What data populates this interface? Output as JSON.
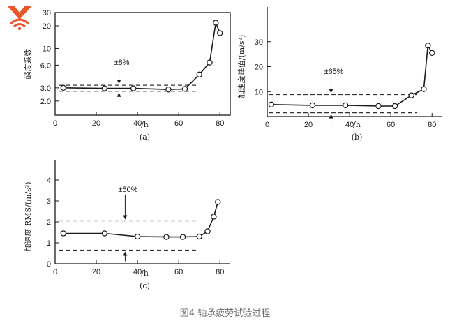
{
  "figure_caption": "图4 轴承疲劳试验过程",
  "logo": {
    "name": "wifi-logo-icon",
    "color": "#e8572a"
  },
  "chart_data": [
    {
      "type": "line",
      "panel": "(a)",
      "ylabel": "峭度系数",
      "xlabel": "/h",
      "y_scale": "log",
      "ylim": [
        1.3,
        30
      ],
      "xlim": [
        0,
        85
      ],
      "yticks": [
        2.0,
        3.0,
        6.0,
        10,
        20,
        30
      ],
      "yticklabels": [
        "2.0",
        "3.0",
        "6.0",
        "10",
        "20",
        "30"
      ],
      "xticks": [
        0,
        20,
        40,
        60,
        80
      ],
      "xticklabels": [
        "0",
        "20",
        "40",
        "60",
        "80"
      ],
      "series": [
        {
          "x": [
            4,
            24,
            38,
            55,
            63,
            70,
            75,
            78,
            80
          ],
          "y": [
            3.0,
            2.95,
            2.95,
            2.85,
            2.9,
            4.5,
            6.5,
            22,
            16
          ]
        }
      ],
      "hlines": [
        3.25,
        2.7
      ],
      "annotation": "±8%",
      "annotation_x": 31,
      "grid": false
    },
    {
      "type": "line",
      "panel": "(b)",
      "ylabel": "加速度峰值/(m/s²)",
      "xlabel": "/h",
      "ylim": [
        0,
        40
      ],
      "xlim": [
        0,
        85
      ],
      "yticks": [
        10,
        20,
        30
      ],
      "yticklabels": [
        "10",
        "20",
        "30"
      ],
      "xticks": [
        0,
        20,
        40,
        60,
        80
      ],
      "xticklabels": [
        "0",
        "20",
        "40",
        "60",
        "80"
      ],
      "series": [
        {
          "x": [
            2,
            22,
            38,
            54,
            62,
            70,
            76,
            78,
            80
          ],
          "y": [
            4.8,
            4.5,
            4.5,
            4.2,
            4.2,
            8.5,
            11,
            28.5,
            25.5
          ]
        }
      ],
      "hlines": [
        8.8,
        1.5
      ],
      "annotation": "±65%",
      "annotation_x": 31,
      "grid": false
    },
    {
      "type": "line",
      "panel": "(c)",
      "ylabel": "加速度 RMS/(m/s²)",
      "xlabel": "/h",
      "ylim": [
        0,
        4.5
      ],
      "xlim": [
        0,
        85
      ],
      "yticks": [
        0,
        1,
        2,
        3,
        4
      ],
      "yticklabels": [
        "0",
        "1",
        "2",
        "3",
        "4"
      ],
      "xticks": [
        0,
        20,
        40,
        60,
        80
      ],
      "xticklabels": [
        "0",
        "20",
        "40",
        "60",
        "80"
      ],
      "series": [
        {
          "x": [
            4,
            24,
            40,
            54,
            62,
            70,
            74,
            77,
            79
          ],
          "y": [
            1.45,
            1.45,
            1.3,
            1.28,
            1.28,
            1.3,
            1.55,
            2.25,
            2.95
          ]
        }
      ],
      "hlines": [
        2.05,
        0.65
      ],
      "annotation": "±50%",
      "annotation_x": 34,
      "grid": false
    }
  ]
}
